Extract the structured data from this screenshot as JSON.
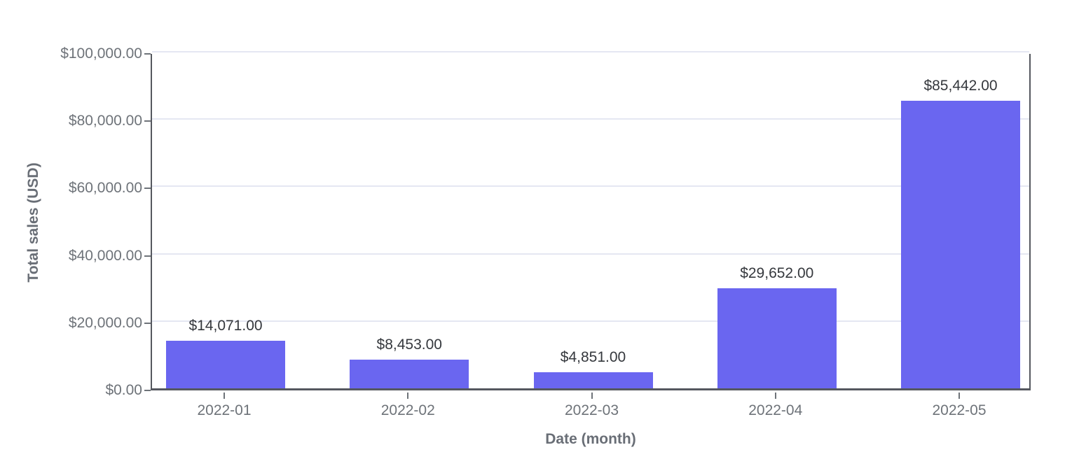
{
  "chart_data": {
    "type": "bar",
    "title": "",
    "xlabel": "Date (month)",
    "ylabel": "Total sales (USD)",
    "categories": [
      "2022-01",
      "2022-02",
      "2022-03",
      "2022-04",
      "2022-05"
    ],
    "values": [
      14071,
      8453,
      4851,
      29652,
      85442
    ],
    "data_labels": [
      "$14,071.00",
      "$8,453.00",
      "$4,851.00",
      "$29,652.00",
      "$85,442.00"
    ],
    "ylim": [
      0,
      100000
    ],
    "yticks": [
      {
        "value": 0,
        "label": "$0.00"
      },
      {
        "value": 20000,
        "label": "$20,000.00"
      },
      {
        "value": 40000,
        "label": "$40,000.00"
      },
      {
        "value": 60000,
        "label": "$60,000.00"
      },
      {
        "value": 80000,
        "label": "$80,000.00"
      },
      {
        "value": 100000,
        "label": "$100,000.00"
      }
    ],
    "grid": true,
    "legend_position": "none",
    "colors": {
      "bar_fill": "#6a66f0",
      "gridline": "#e5e7f2",
      "axis_line": "#55585f",
      "tick_label": "#6e7379",
      "axis_title": "#696e76",
      "data_label": "#35383d",
      "background": "#ffffff"
    }
  }
}
